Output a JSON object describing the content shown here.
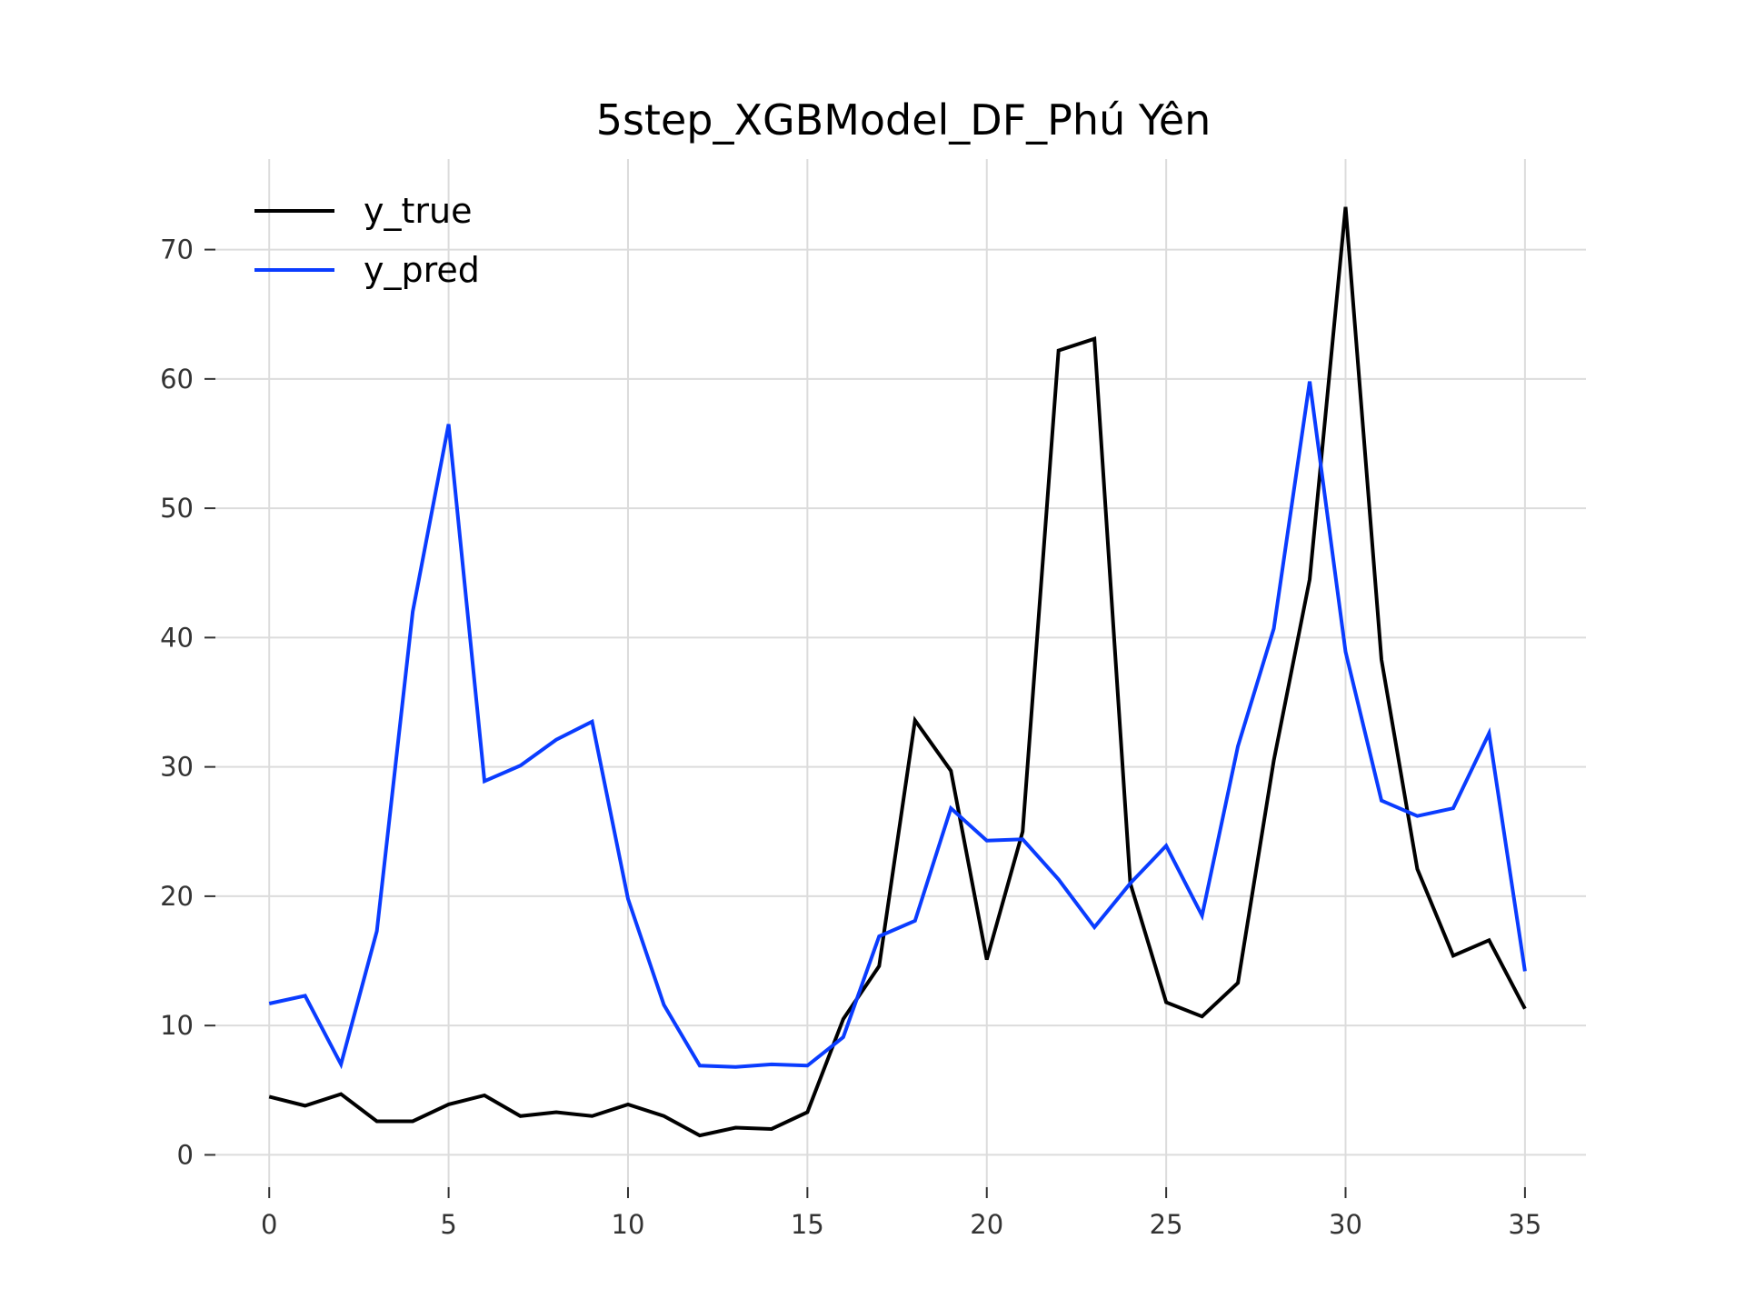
{
  "chart_data": {
    "type": "line",
    "title": "5step_XGBModel_DF_Phú Yên",
    "xlabel": "",
    "ylabel": "",
    "xlim": [
      -1.5,
      36.7
    ],
    "ylim": [
      -2.5,
      77
    ],
    "x_ticks": [
      0,
      5,
      10,
      15,
      20,
      25,
      30,
      35
    ],
    "y_ticks": [
      0,
      10,
      20,
      30,
      40,
      50,
      60,
      70
    ],
    "grid": true,
    "legend_position": "top-left",
    "x": [
      0,
      1,
      2,
      3,
      4,
      5,
      6,
      7,
      8,
      9,
      10,
      11,
      12,
      13,
      14,
      15,
      16,
      17,
      18,
      19,
      20,
      21,
      22,
      23,
      24,
      25,
      26,
      27,
      28,
      29,
      30,
      31,
      32,
      33,
      34,
      35
    ],
    "series": [
      {
        "name": "y_true",
        "color": "#000000",
        "values": [
          4.5,
          3.8,
          4.7,
          2.6,
          2.6,
          3.9,
          4.6,
          3.0,
          3.3,
          3.0,
          3.9,
          3.0,
          1.5,
          2.1,
          2.0,
          3.3,
          10.5,
          14.6,
          33.6,
          29.7,
          15.1,
          25.0,
          62.2,
          63.1,
          21.0,
          11.8,
          10.7,
          13.3,
          30.5,
          44.5,
          73.3,
          38.3,
          22.1,
          15.4,
          16.6,
          11.3
        ]
      },
      {
        "name": "y_pred",
        "color": "#0a3cff",
        "values": [
          11.7,
          12.3,
          7.0,
          17.3,
          42.0,
          56.5,
          28.9,
          30.1,
          32.1,
          33.5,
          19.8,
          11.6,
          6.9,
          6.8,
          7.0,
          6.9,
          9.1,
          16.9,
          18.1,
          26.8,
          24.3,
          24.4,
          21.3,
          17.6,
          21.0,
          23.9,
          18.5,
          31.6,
          40.7,
          59.8,
          38.9,
          27.4,
          26.2,
          26.8,
          32.6,
          14.2
        ]
      }
    ]
  }
}
